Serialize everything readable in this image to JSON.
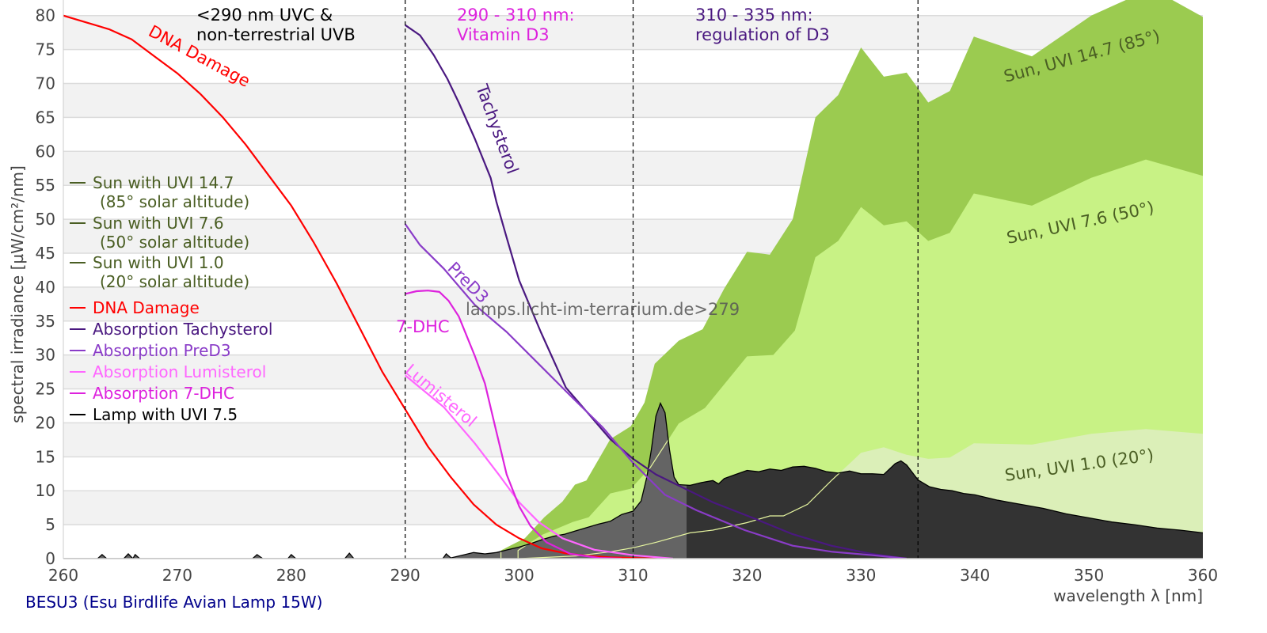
{
  "chart_data": {
    "type": "area",
    "title": "BESU3 (Esu Birdlife Avian Lamp 15W)",
    "xlabel": "wavelength λ [nm]",
    "ylabel": "spectral irradiance [µW/cm²/nm]",
    "xlim": [
      260,
      360
    ],
    "ylim": [
      0,
      82.3
    ],
    "xticks": [
      260,
      270,
      280,
      290,
      300,
      310,
      320,
      330,
      340,
      350,
      360
    ],
    "yticks": [
      0,
      5,
      10,
      15,
      20,
      25,
      30,
      35,
      40,
      45,
      50,
      55,
      60,
      65,
      70,
      75,
      80
    ],
    "grid": "horizontal bands",
    "legend_position": "left",
    "watermark": "lamps.licht-im-terrarium.de>279",
    "regions": [
      {
        "at": 290,
        "label_line1": "<290 nm UVC &",
        "label_line2": "non-terrestrial UVB",
        "color": "#000000"
      },
      {
        "at": 310,
        "label_line1": "290 - 310 nm:",
        "label_line2": "Vitamin D3",
        "color": "#dd22dd"
      },
      {
        "at": 335,
        "label_line1": "310 - 335 nm:",
        "label_line2": "regulation of D3",
        "color": "#4a1880"
      }
    ],
    "series": [
      {
        "name": "Sun with UVI 14.7",
        "sub": "(85° solar altitude)",
        "curve_label": "Sun, UVI 14.7 (85°)",
        "kind": "area",
        "color": "#9bcb50",
        "text_color": "#4a5e23",
        "points": [
          [
            298.4,
            0
          ],
          [
            298.4,
            1.2
          ],
          [
            299.2,
            1.9
          ],
          [
            300.5,
            3
          ],
          [
            302.2,
            6.1
          ],
          [
            303.8,
            8.4
          ],
          [
            304.9,
            10.9
          ],
          [
            305.9,
            11.5
          ],
          [
            308,
            17.6
          ],
          [
            309.8,
            19.5
          ],
          [
            311,
            23
          ],
          [
            311.9,
            28.7
          ],
          [
            314,
            32.1
          ],
          [
            316.1,
            33.8
          ],
          [
            318,
            39.8
          ],
          [
            320,
            45.2
          ],
          [
            322,
            44.8
          ],
          [
            324,
            50
          ],
          [
            326,
            65
          ],
          [
            328,
            68.3
          ],
          [
            330,
            75.3
          ],
          [
            332,
            71
          ],
          [
            334,
            71.6
          ],
          [
            335.9,
            67.2
          ],
          [
            337.8,
            68.9
          ],
          [
            339.9,
            76.9
          ],
          [
            345,
            74
          ],
          [
            350.2,
            80
          ],
          [
            355.5,
            84
          ],
          [
            360,
            79.8
          ]
        ]
      },
      {
        "name": "Sun with UVI 7.6",
        "sub": "(50° solar altitude)",
        "curve_label": "Sun, UVI 7.6 (50°)",
        "kind": "area",
        "color": "#c8f285",
        "text_color": "#4a5e23",
        "points": [
          [
            299.9,
            0
          ],
          [
            299.9,
            1.2
          ],
          [
            302,
            3.5
          ],
          [
            304.7,
            5.4
          ],
          [
            306.1,
            6.1
          ],
          [
            308,
            9.6
          ],
          [
            309.8,
            10.3
          ],
          [
            311.5,
            13.4
          ],
          [
            314,
            19.9
          ],
          [
            316.3,
            22.2
          ],
          [
            320,
            29.8
          ],
          [
            322.3,
            30
          ],
          [
            324.2,
            33.6
          ],
          [
            326,
            44.4
          ],
          [
            328,
            46.8
          ],
          [
            330,
            51.8
          ],
          [
            332,
            49.1
          ],
          [
            334,
            49.7
          ],
          [
            335.9,
            46.8
          ],
          [
            337.8,
            48
          ],
          [
            339.9,
            53.8
          ],
          [
            345,
            52
          ],
          [
            350.2,
            56.1
          ],
          [
            355,
            58.8
          ],
          [
            360,
            56.4
          ]
        ]
      },
      {
        "name": "Sun with UVI 1.0",
        "sub": "(20° solar altitude)",
        "curve_label": "Sun, UVI 1.0 (20°)",
        "kind": "area",
        "color": "#dbefb8",
        "text_color": "#4a5e23",
        "points": [
          [
            300,
            0
          ],
          [
            305,
            0.4
          ],
          [
            308,
            1
          ],
          [
            310,
            1.6
          ],
          [
            312,
            2.4
          ],
          [
            315,
            3.8
          ],
          [
            317,
            4.2
          ],
          [
            320,
            5.3
          ],
          [
            322,
            6.3
          ],
          [
            323.2,
            6.3
          ],
          [
            325.3,
            8
          ],
          [
            327.4,
            11.5
          ],
          [
            329,
            14
          ],
          [
            330,
            15.6
          ],
          [
            332,
            16.4
          ],
          [
            334,
            15.3
          ],
          [
            335.9,
            14.7
          ],
          [
            337.8,
            14.9
          ],
          [
            339.9,
            17
          ],
          [
            345,
            16.8
          ],
          [
            350.2,
            18.4
          ],
          [
            355,
            19.1
          ],
          [
            360,
            18.4
          ]
        ]
      },
      {
        "name": "DNA Damage",
        "curve_label": "DNA Damage",
        "kind": "line",
        "color": "#ff0000",
        "points": [
          [
            260,
            80
          ],
          [
            262,
            79
          ],
          [
            264,
            78
          ],
          [
            266,
            76.5
          ],
          [
            268,
            74
          ],
          [
            270,
            71.5
          ],
          [
            272,
            68.5
          ],
          [
            274,
            65
          ],
          [
            276,
            61
          ],
          [
            278,
            56.5
          ],
          [
            280,
            52
          ],
          [
            282,
            46.5
          ],
          [
            284,
            40.5
          ],
          [
            286,
            34
          ],
          [
            288,
            27.5
          ],
          [
            290,
            22
          ],
          [
            292,
            16.5
          ],
          [
            294,
            12
          ],
          [
            296,
            8
          ],
          [
            298,
            5
          ],
          [
            300,
            3
          ],
          [
            302,
            1.5
          ],
          [
            304,
            0.8
          ],
          [
            306,
            0.4
          ],
          [
            308,
            0.2
          ],
          [
            310,
            0.1
          ],
          [
            312,
            0
          ]
        ]
      },
      {
        "name": "Absorption Tachysterol",
        "curve_label": "Tachysterol",
        "kind": "line",
        "color": "#4a1880",
        "points": [
          [
            290,
            78.6
          ],
          [
            291.3,
            77.1
          ],
          [
            292.5,
            74.2
          ],
          [
            293.7,
            70.7
          ],
          [
            294.7,
            67.2
          ],
          [
            296.1,
            61.9
          ],
          [
            297.5,
            56.1
          ],
          [
            298,
            52.6
          ],
          [
            298.9,
            47.3
          ],
          [
            300,
            41
          ],
          [
            301.9,
            33.4
          ],
          [
            304.1,
            25.2
          ],
          [
            305.9,
            21.7
          ],
          [
            308,
            17.6
          ],
          [
            310,
            14.7
          ],
          [
            312,
            12.4
          ],
          [
            317,
            8.3
          ],
          [
            320.5,
            6
          ],
          [
            324,
            3.6
          ],
          [
            327.4,
            1.9
          ],
          [
            330.9,
            0.7
          ],
          [
            334,
            0
          ]
        ]
      },
      {
        "name": "Absorption PreD3",
        "curve_label": "PreD3",
        "kind": "line",
        "color": "#8a3cc8",
        "points": [
          [
            290,
            49.3
          ],
          [
            291.3,
            46.2
          ],
          [
            293.4,
            42.7
          ],
          [
            296.1,
            37.4
          ],
          [
            298.9,
            33.4
          ],
          [
            301.7,
            28.7
          ],
          [
            304.5,
            24
          ],
          [
            307.3,
            19.4
          ],
          [
            310,
            14.1
          ],
          [
            312.8,
            9.4
          ],
          [
            315.6,
            7.1
          ],
          [
            319.8,
            4.2
          ],
          [
            324,
            1.9
          ],
          [
            327.5,
            1
          ],
          [
            331,
            0.5
          ],
          [
            334,
            0
          ]
        ]
      },
      {
        "name": "Absorption Lumisterol",
        "curve_label": "Lumisterol",
        "kind": "line",
        "color": "#ff66ff",
        "points": [
          [
            290,
            27
          ],
          [
            293.4,
            22.3
          ],
          [
            296.1,
            17
          ],
          [
            298.2,
            12.4
          ],
          [
            300,
            8.3
          ],
          [
            301.7,
            5.4
          ],
          [
            303.8,
            3
          ],
          [
            306.6,
            1.3
          ],
          [
            310,
            0.5
          ],
          [
            313.5,
            0
          ]
        ]
      },
      {
        "name": "Absorption 7-DHC",
        "curve_label": "7-DHC",
        "kind": "line",
        "color": "#dd22dd",
        "points": [
          [
            290,
            39
          ],
          [
            291,
            39.4
          ],
          [
            292,
            39.5
          ],
          [
            293,
            39.3
          ],
          [
            293.8,
            38
          ],
          [
            294.7,
            35.7
          ],
          [
            296.1,
            29.9
          ],
          [
            297,
            25.8
          ],
          [
            297.9,
            19.4
          ],
          [
            298.9,
            12.4
          ],
          [
            300,
            7.7
          ],
          [
            301,
            4.8
          ],
          [
            302.4,
            2.4
          ],
          [
            304.5,
            0.7
          ],
          [
            307,
            0.1
          ],
          [
            309,
            0
          ]
        ]
      },
      {
        "name": "Lamp with UVI 7.5",
        "kind": "lamp",
        "color": "#000000",
        "fill_below_315": "#646464",
        "fill_above_315": "#333333",
        "points": [
          [
            260,
            0
          ],
          [
            263,
            0
          ],
          [
            263.4,
            0.6
          ],
          [
            263.8,
            0
          ],
          [
            265.3,
            0
          ],
          [
            265.7,
            0.7
          ],
          [
            266.1,
            0
          ],
          [
            266.3,
            0.6
          ],
          [
            266.7,
            0
          ],
          [
            276.6,
            0
          ],
          [
            277,
            0.6
          ],
          [
            277.5,
            0
          ],
          [
            279.7,
            0
          ],
          [
            280,
            0.6
          ],
          [
            280.4,
            0
          ],
          [
            284.7,
            0
          ],
          [
            285.1,
            0.8
          ],
          [
            285.5,
            0
          ],
          [
            293.3,
            0
          ],
          [
            293.6,
            0.7
          ],
          [
            294,
            0.1
          ],
          [
            295,
            0.5
          ],
          [
            296,
            0.9
          ],
          [
            297,
            0.7
          ],
          [
            298,
            0.9
          ],
          [
            299,
            1.3
          ],
          [
            300,
            1.7
          ],
          [
            301,
            2.2
          ],
          [
            302,
            2.8
          ],
          [
            303,
            3.3
          ],
          [
            304,
            3.6
          ],
          [
            305,
            4.1
          ],
          [
            306,
            4.6
          ],
          [
            307,
            5.1
          ],
          [
            308,
            5.5
          ],
          [
            309,
            6.5
          ],
          [
            310,
            7
          ],
          [
            310.7,
            8.5
          ],
          [
            311.2,
            12
          ],
          [
            311.6,
            16
          ],
          [
            312,
            21
          ],
          [
            312.4,
            22.9
          ],
          [
            312.8,
            21.5
          ],
          [
            313.2,
            16
          ],
          [
            313.6,
            12
          ],
          [
            314,
            10.9
          ],
          [
            315,
            10.8
          ],
          [
            316,
            11.2
          ],
          [
            317,
            11.5
          ],
          [
            317.5,
            11
          ],
          [
            318,
            11.8
          ],
          [
            319,
            12.4
          ],
          [
            320,
            13
          ],
          [
            321,
            12.8
          ],
          [
            322,
            13.2
          ],
          [
            323,
            13
          ],
          [
            324,
            13.5
          ],
          [
            325,
            13.6
          ],
          [
            326,
            13.3
          ],
          [
            327,
            12.8
          ],
          [
            328,
            12.6
          ],
          [
            329,
            12.9
          ],
          [
            330,
            12.5
          ],
          [
            331,
            12.5
          ],
          [
            332,
            12.4
          ],
          [
            333,
            14
          ],
          [
            333.5,
            14.4
          ],
          [
            334,
            13.8
          ],
          [
            335,
            11.6
          ],
          [
            336,
            10.6
          ],
          [
            337,
            10.2
          ],
          [
            338,
            10
          ],
          [
            339,
            9.6
          ],
          [
            340,
            9.4
          ],
          [
            342,
            8.6
          ],
          [
            344,
            8
          ],
          [
            346,
            7.4
          ],
          [
            348,
            6.6
          ],
          [
            350,
            6
          ],
          [
            352,
            5.4
          ],
          [
            354,
            5
          ],
          [
            356,
            4.5
          ],
          [
            358,
            4.2
          ],
          [
            360,
            3.8
          ]
        ]
      }
    ]
  }
}
